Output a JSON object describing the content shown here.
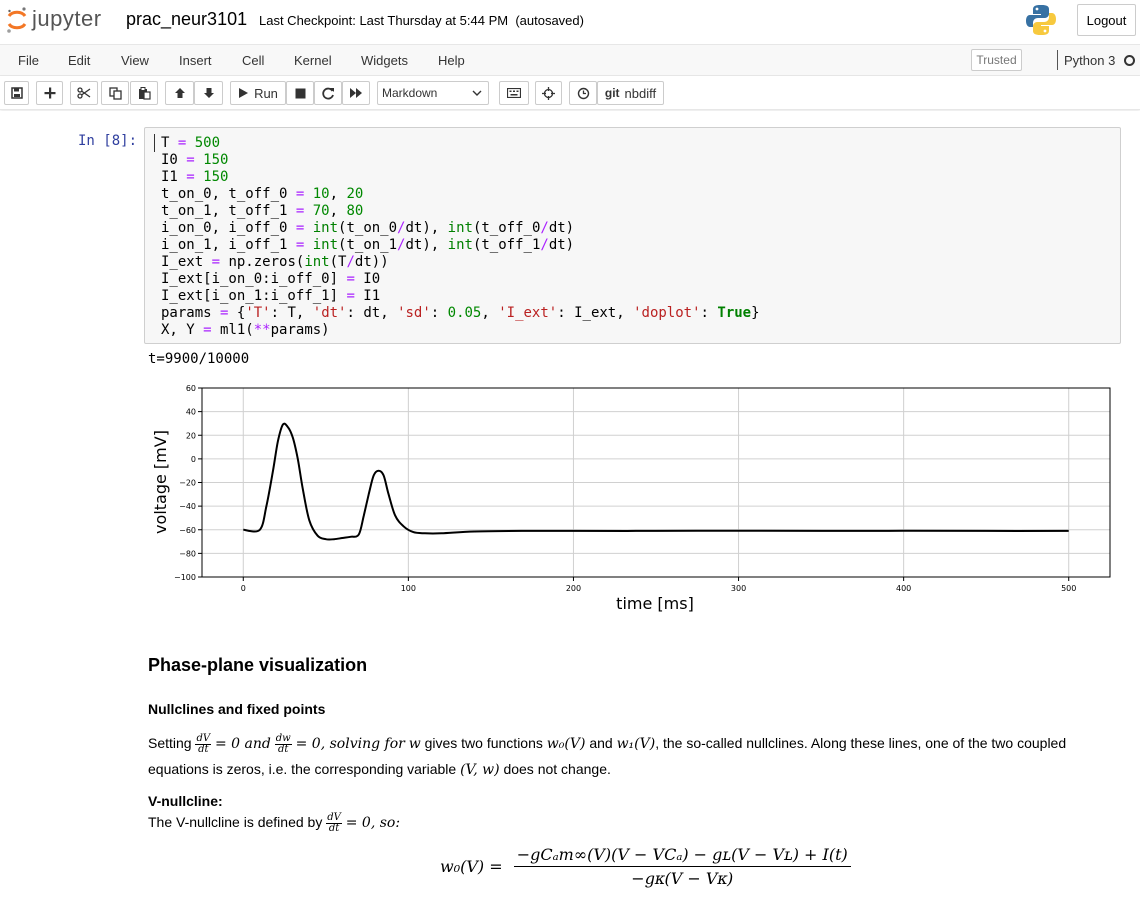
{
  "header": {
    "logo_text": "jupyter",
    "notebook_name": "prac_neur3101",
    "checkpoint": "Last Checkpoint: Last Thursday at 5:44 PM",
    "autosave": "(autosaved)",
    "logout_label": "Logout"
  },
  "menubar": {
    "items": [
      "File",
      "Edit",
      "View",
      "Insert",
      "Cell",
      "Kernel",
      "Widgets",
      "Help"
    ],
    "trusted": "Trusted",
    "kernel": "Python 3"
  },
  "toolbar": {
    "run_label": "Run",
    "cell_type": "Markdown",
    "nbdiff_label": "nbdiff",
    "git_label": "git"
  },
  "cell": {
    "prompt": "In [8]:",
    "code": [
      "T = 500",
      "I0 = 150",
      "I1 = 150",
      "t_on_0, t_off_0 = 10, 20",
      "t_on_1, t_off_1 = 70, 80",
      "i_on_0, i_off_0 = int(t_on_0/dt), int(t_off_0/dt)",
      "i_on_1, i_off_1 = int(t_on_1/dt), int(t_off_1/dt)",
      "I_ext = np.zeros(int(T/dt))",
      "I_ext[i_on_0:i_off_0] = I0",
      "I_ext[i_on_1:i_off_1] = I1",
      "params = {'T': T, 'dt': dt, 'sd': 0.05, 'I_ext': I_ext, 'doplot': True}",
      "X, Y = ml1(**params)"
    ],
    "stdout": "t=9900/10000"
  },
  "chart_data": {
    "type": "line",
    "title": "",
    "xlabel": "time [ms]",
    "ylabel": "voltage [mV]",
    "xlim": [
      -25,
      525
    ],
    "ylim": [
      -100,
      60
    ],
    "xticks": [
      0,
      100,
      200,
      300,
      400,
      500
    ],
    "yticks": [
      -100,
      -80,
      -60,
      -40,
      -20,
      0,
      20,
      40,
      60
    ],
    "grid": true,
    "color": "#000000",
    "series": [
      {
        "x": [
          0,
          10,
          14,
          18,
          21,
          24,
          27,
          30,
          33,
          36,
          40,
          45,
          50,
          55,
          60,
          65,
          70,
          73,
          76,
          79,
          82,
          85,
          88,
          92,
          97,
          103,
          110,
          120,
          140,
          170,
          200,
          250,
          300,
          350,
          400,
          450,
          500
        ],
        "y": [
          -60,
          -60,
          -40,
          -10,
          15,
          29,
          27,
          18,
          0,
          -25,
          -52,
          -65,
          -68,
          -68,
          -67,
          -66,
          -64,
          -48,
          -30,
          -14,
          -10,
          -14,
          -30,
          -48,
          -57,
          -62,
          -63,
          -63,
          -61.5,
          -61,
          -61,
          -61,
          -60.8,
          -61,
          -60.9,
          -61,
          -61
        ]
      }
    ]
  },
  "markdown": {
    "h2": "Phase-plane visualization",
    "h3": "Nullclines and fixed points",
    "p1_a": "Setting",
    "p1_b": "= 0 and",
    "p1_c": "= 0, solving for",
    "p1_d": "w",
    "p1_e": "gives two functions",
    "p1_f": "w₀(V)",
    "p1_g": "and",
    "p1_h": "w₁(V)",
    "p1_i": ", the so-called nullclines. Along these lines, one of the two coupled equations is zeros, i.e. the corresponding variable",
    "p1_j": "(V, w)",
    "p1_k": "does not change.",
    "h4": "V-nullcline:",
    "p2_a": "The V-nullcline is defined by",
    "p2_b": "= 0, so:",
    "frac_dv_num": "dV",
    "frac_dw_num": "dw",
    "frac_den": "dt",
    "eq_lhs": "w₀(V) =",
    "eq_num": "−gCₐm∞(V)(V − VCₐ) − gʟ(V − Vʟ) + I(t)",
    "eq_den": "−gᴋ(V − Vᴋ)"
  }
}
